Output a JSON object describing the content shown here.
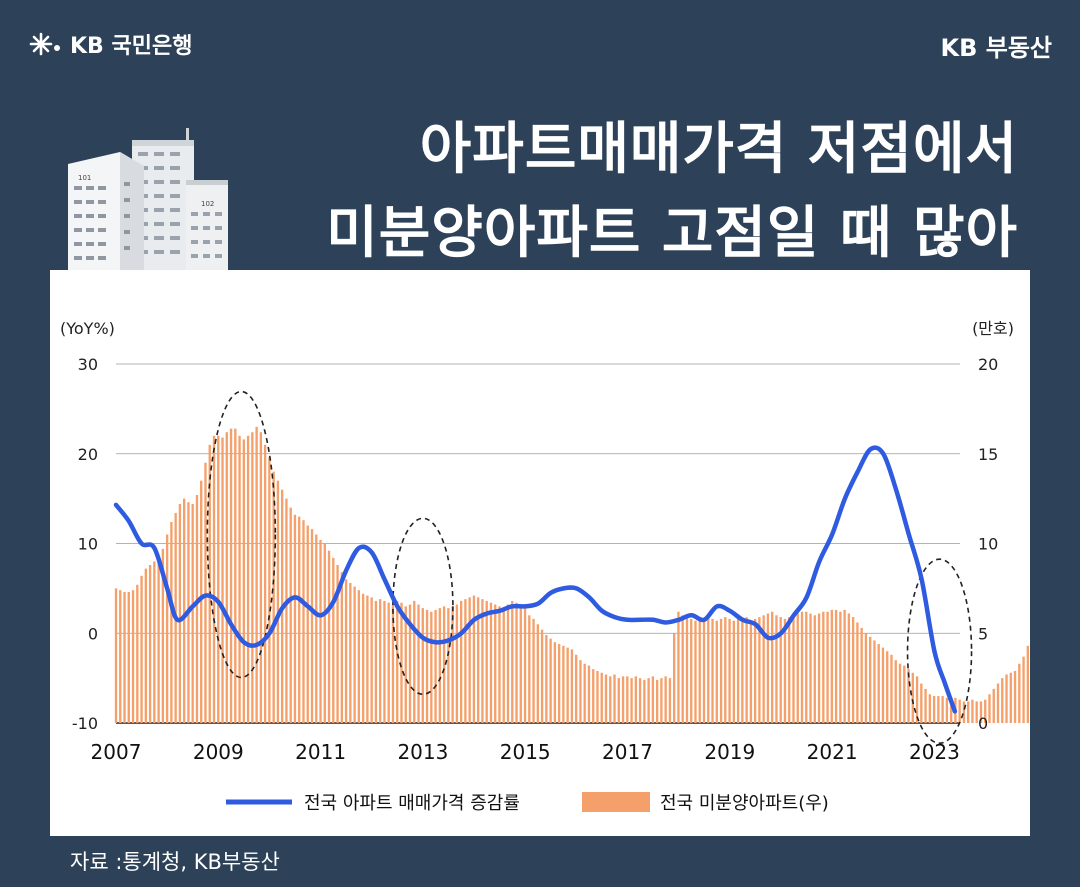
{
  "header": {
    "bank_logo": "KB 국민은행",
    "brand": "KB 부동산"
  },
  "title": {
    "line1": "아파트매매가격 저점에서",
    "line2": "미분양아파트 고점일 때 많아"
  },
  "illustration": {
    "building1_label": "101",
    "building2_label": "102"
  },
  "source": "자료 :통계청, KB부동산",
  "colors": {
    "background": "#2d4159",
    "line": "#2f5be0",
    "bar": "#f5a06a"
  },
  "chart_data": {
    "type": "bar+line",
    "left_unit": "(YoY%)",
    "right_unit": "(만호)",
    "left_ticks": [
      "30",
      "20",
      "10",
      "0",
      "-10"
    ],
    "right_ticks": [
      "20",
      "15",
      "10",
      "5",
      "0"
    ],
    "ylim_left": [
      -10,
      30
    ],
    "ylim_right": [
      0,
      20
    ],
    "x_ticks": [
      "2007",
      "2009",
      "2011",
      "2013",
      "2015",
      "2017",
      "2019",
      "2021",
      "2023"
    ],
    "x_range": [
      2007,
      2023.5
    ],
    "grid": true,
    "legend_position": "bottom",
    "series": [
      {
        "name": "전국 아파트 매매가격 증감률",
        "type": "line",
        "axis": "left",
        "points": [
          [
            2007.0,
            14.3
          ],
          [
            2007.25,
            12.5
          ],
          [
            2007.5,
            10.0
          ],
          [
            2007.75,
            9.5
          ],
          [
            2008.0,
            5.0
          ],
          [
            2008.2,
            1.5
          ],
          [
            2008.5,
            3.0
          ],
          [
            2008.75,
            4.2
          ],
          [
            2009.0,
            3.5
          ],
          [
            2009.25,
            1.0
          ],
          [
            2009.5,
            -1.0
          ],
          [
            2009.75,
            -1.3
          ],
          [
            2010.0,
            0.0
          ],
          [
            2010.25,
            2.8
          ],
          [
            2010.5,
            4.0
          ],
          [
            2010.75,
            3.0
          ],
          [
            2011.0,
            2.0
          ],
          [
            2011.25,
            3.5
          ],
          [
            2011.5,
            7.0
          ],
          [
            2011.75,
            9.5
          ],
          [
            2012.0,
            9.0
          ],
          [
            2012.25,
            6.0
          ],
          [
            2012.5,
            3.0
          ],
          [
            2012.75,
            1.0
          ],
          [
            2013.0,
            -0.5
          ],
          [
            2013.25,
            -1.0
          ],
          [
            2013.5,
            -0.8
          ],
          [
            2013.75,
            0.0
          ],
          [
            2014.0,
            1.5
          ],
          [
            2014.25,
            2.2
          ],
          [
            2014.5,
            2.5
          ],
          [
            2014.75,
            3.0
          ],
          [
            2015.0,
            3.0
          ],
          [
            2015.25,
            3.3
          ],
          [
            2015.5,
            4.5
          ],
          [
            2015.75,
            5.0
          ],
          [
            2016.0,
            5.0
          ],
          [
            2016.25,
            4.0
          ],
          [
            2016.5,
            2.5
          ],
          [
            2016.75,
            1.8
          ],
          [
            2017.0,
            1.5
          ],
          [
            2017.25,
            1.5
          ],
          [
            2017.5,
            1.5
          ],
          [
            2017.75,
            1.2
          ],
          [
            2018.0,
            1.5
          ],
          [
            2018.25,
            2.0
          ],
          [
            2018.5,
            1.5
          ],
          [
            2018.75,
            3.0
          ],
          [
            2019.0,
            2.5
          ],
          [
            2019.25,
            1.5
          ],
          [
            2019.5,
            1.0
          ],
          [
            2019.75,
            -0.5
          ],
          [
            2020.0,
            0.0
          ],
          [
            2020.25,
            2.0
          ],
          [
            2020.5,
            4.0
          ],
          [
            2020.75,
            8.0
          ],
          [
            2021.0,
            11.0
          ],
          [
            2021.25,
            15.0
          ],
          [
            2021.5,
            18.0
          ],
          [
            2021.75,
            20.5
          ],
          [
            2022.0,
            20.0
          ],
          [
            2022.25,
            16.0
          ],
          [
            2022.5,
            11.0
          ],
          [
            2022.75,
            6.0
          ],
          [
            2023.0,
            -2.0
          ],
          [
            2023.2,
            -5.5
          ],
          [
            2023.4,
            -8.7
          ]
        ]
      },
      {
        "name": "전국 미분양아파트(우)",
        "type": "bar",
        "axis": "right",
        "x_start": 2007.0,
        "x_step": 0.0833,
        "values": [
          7.5,
          7.4,
          7.3,
          7.3,
          7.4,
          7.7,
          8.2,
          8.6,
          8.8,
          9.0,
          9.3,
          9.7,
          10.5,
          11.2,
          11.7,
          12.2,
          12.5,
          12.3,
          12.2,
          12.7,
          13.5,
          14.5,
          15.5,
          16.0,
          16.0,
          15.9,
          16.2,
          16.4,
          16.4,
          16.0,
          15.8,
          16.0,
          16.2,
          16.5,
          16.2,
          15.5,
          14.8,
          14.0,
          13.5,
          13.0,
          12.5,
          12.0,
          11.6,
          11.5,
          11.3,
          11.0,
          10.8,
          10.5,
          10.2,
          10.0,
          9.6,
          9.2,
          8.8,
          8.4,
          8.0,
          7.8,
          7.6,
          7.4,
          7.2,
          7.1,
          7.0,
          6.8,
          6.9,
          6.8,
          6.7,
          6.6,
          6.8,
          6.7,
          6.5,
          6.6,
          6.8,
          6.6,
          6.4,
          6.3,
          6.2,
          6.3,
          6.4,
          6.5,
          6.4,
          6.5,
          6.6,
          6.8,
          6.9,
          7.0,
          7.1,
          7.0,
          6.9,
          6.8,
          6.7,
          6.6,
          6.5,
          6.4,
          6.6,
          6.8,
          6.7,
          6.5,
          6.4,
          6.0,
          5.8,
          5.5,
          5.2,
          4.9,
          4.7,
          4.5,
          4.4,
          4.3,
          4.2,
          4.1,
          3.8,
          3.5,
          3.3,
          3.2,
          3.0,
          2.9,
          2.8,
          2.7,
          2.6,
          2.7,
          2.5,
          2.6,
          2.6,
          2.5,
          2.6,
          2.5,
          2.4,
          2.5,
          2.6,
          2.4,
          2.5,
          2.6,
          2.5,
          5.0,
          6.2,
          6.0,
          5.9,
          5.8,
          5.7,
          5.9,
          5.8,
          5.9,
          5.8,
          5.7,
          5.8,
          5.9,
          5.8,
          5.7,
          5.9,
          5.8,
          5.9,
          5.7,
          5.8,
          5.9,
          6.0,
          6.1,
          6.2,
          6.0,
          5.9,
          5.8,
          5.9,
          6.0,
          6.1,
          6.2,
          6.2,
          6.1,
          6.0,
          6.1,
          6.2,
          6.2,
          6.3,
          6.3,
          6.2,
          6.3,
          6.1,
          5.9,
          5.6,
          5.3,
          5.0,
          4.8,
          4.6,
          4.4,
          4.2,
          4.0,
          3.8,
          3.5,
          3.3,
          3.2,
          3.0,
          2.8,
          2.6,
          2.2,
          1.9,
          1.6,
          1.5,
          1.5,
          1.5,
          1.4,
          1.3,
          1.4,
          1.3,
          1.2,
          1.2,
          1.3,
          1.2,
          1.2,
          1.3,
          1.6,
          1.9,
          2.2,
          2.5,
          2.7,
          2.8,
          2.9,
          3.3,
          3.7,
          4.3,
          5.2,
          5.9,
          6.8,
          7.0,
          7.3,
          7.3,
          7.1
        ]
      }
    ]
  }
}
